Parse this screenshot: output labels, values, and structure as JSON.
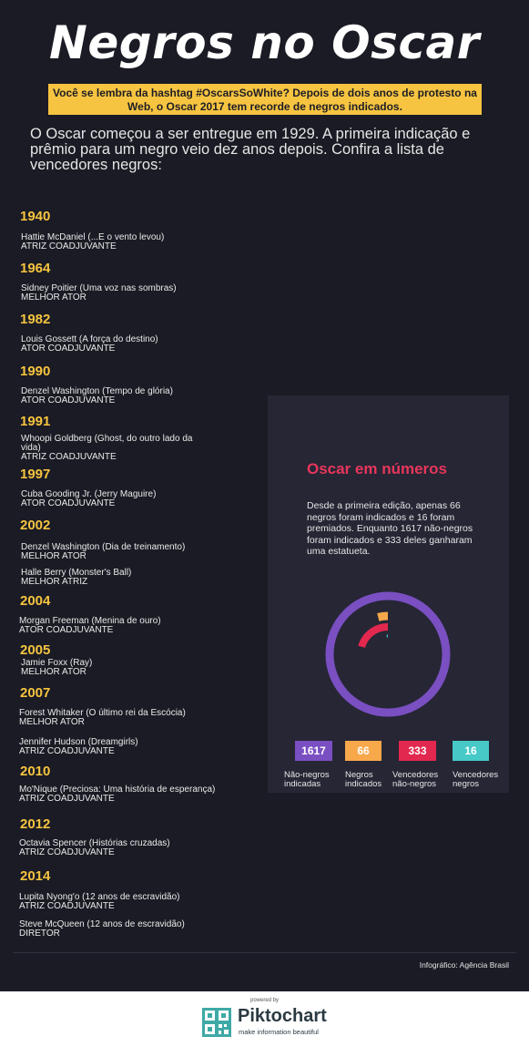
{
  "title": "Negros no Oscar",
  "banner": "Você se lembra da hashtag #OscarsSoWhite? Depois de dois anos de protesto na Web, o Oscar 2017 tem recorde de negros indicados.",
  "intro": "O Oscar começou a ser entregue em 1929. A primeira indicação e prêmio para um negro veio dez anos depois. Confira a lista de vencedores negros:",
  "years": [
    "1940",
    "1964",
    "1982",
    "1990",
    "1991",
    "1997",
    "2002",
    "2004",
    "2005",
    "2007",
    "2010",
    "2012",
    "2014"
  ],
  "entries": [
    {
      "name": "Hattie McDaniel (...E o vento levou)",
      "category": "ATRIZ COADJUVANTE"
    },
    {
      "name": "Sidney Poitier (Uma voz nas sombras)",
      "category": "MELHOR ATOR"
    },
    {
      "name": "Louis Gossett (A força do destino)",
      "category": "ATOR COADJUVANTE"
    },
    {
      "name": "Denzel Washington  (Tempo de glória)",
      "category": "ATOR COADJUVANTE"
    },
    {
      "name": "Whoopi Goldberg  (Ghost, do outro lado da vida)",
      "category": "ATRIZ COADJUVANTE"
    },
    {
      "name": "Cuba Gooding Jr.  (Jerry Maguire)",
      "category": "ATOR COADJUVANTE"
    },
    {
      "name": "Denzel Washington (Dia de treinamento)",
      "category": "MELHOR ATOR"
    },
    {
      "name": "Halle Berry  (Monster's Ball)",
      "category": "MELHOR ATRIZ"
    },
    {
      "name": "Morgan Freeman  (Menina de ouro)",
      "category": "ATOR COADJUVANTE"
    },
    {
      "name": "Jamie Foxx    (Ray)",
      "category": "MELHOR ATOR"
    },
    {
      "name": "Forest Whitaker (O último rei da Escócia)",
      "category": "MELHOR ATOR"
    },
    {
      "name": "Jennifer Hudson  (Dreamgirls)",
      "category": "ATRIZ COADJUVANTE"
    },
    {
      "name": "Mo'Nique  (Preciosa: Uma história de esperança)",
      "category": "ATRIZ COADJUVANTE"
    },
    {
      "name": "Octavia Spencer  (Histórias cruzadas)",
      "category": "ATRIZ COADJUVANTE"
    },
    {
      "name": "Lupita Nyong'o   (12 anos de escravidão)",
      "category": "ATRIZ COADJUVANTE"
    },
    {
      "name": "Steve McQueen    (12 anos de escravidão)",
      "category": "DIRETOR"
    }
  ],
  "panel": {
    "title": "Oscar em números",
    "text": "Desde a primeira edição, apenas 66 negros foram indicados e 16 foram premiados. Enquanto 1617 não-negros foram indicados e 333 deles ganharam uma estatueta."
  },
  "chart_data": {
    "type": "pie",
    "style": "concentric-rings",
    "series": [
      {
        "name": "Não-negros indicadas",
        "value": 1617,
        "color": "#7a4fc1"
      },
      {
        "name": "Negros indicados",
        "value": 66,
        "color": "#f7a84a"
      },
      {
        "name": "Vencedores não-negros",
        "value": 333,
        "color": "#e2284e"
      },
      {
        "name": "Vencedores negros",
        "value": 16,
        "color": "#46c9c7"
      }
    ],
    "stats": [
      {
        "value": "1617",
        "label": "Não-negros indicadas",
        "color": "#7a4fc1",
        "text_color": "#ffffff"
      },
      {
        "value": "66",
        "label": "Negros indicados",
        "color": "#f7a84a",
        "text_color": "#ffffff"
      },
      {
        "value": "333",
        "label": "Vencedores não-negros",
        "color": "#e2284e",
        "text_color": "#ffffff"
      },
      {
        "value": "16",
        "label": "Vencedores negros",
        "color": "#46c9c7",
        "text_color": "#ffffff"
      }
    ]
  },
  "credit": "Infográfico: Agência Brasil",
  "footer": {
    "powered": "powered by",
    "brand": "Piktochart",
    "tagline": "make information beautiful"
  },
  "colors": {
    "background": "#1a1b24",
    "accent_yellow": "#f6c440",
    "accent_red": "#e8365b",
    "panel": "#262635"
  }
}
